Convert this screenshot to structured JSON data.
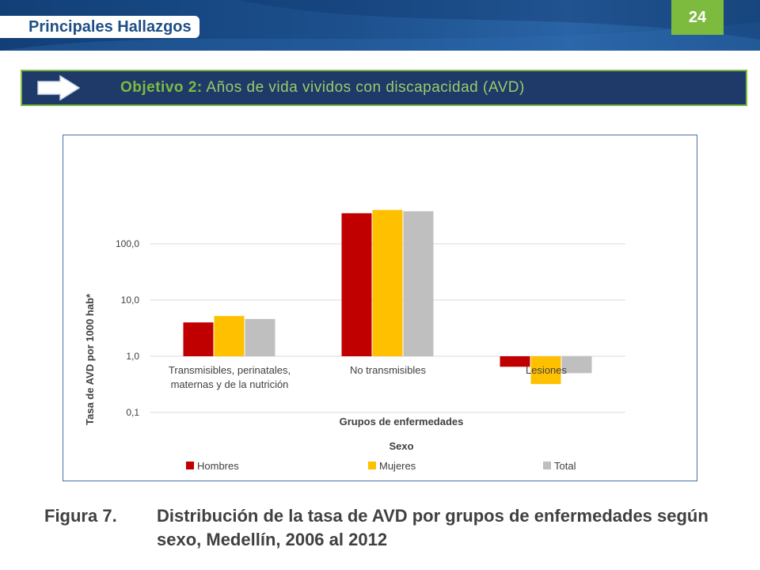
{
  "header": {
    "title": "Principales Hallazgos",
    "slide_number": "24"
  },
  "objective": {
    "label": "Objetivo 2:",
    "text": "Años de vida vividos con discapacidad (AVD)",
    "icon": "arrow-right-icon"
  },
  "chart_data": {
    "type": "bar",
    "y_scale": "log",
    "ylim": [
      0.1,
      500
    ],
    "yticks": [
      {
        "value": 0.1,
        "label": "0,1"
      },
      {
        "value": 1,
        "label": "1,0"
      },
      {
        "value": 10,
        "label": "10,0"
      },
      {
        "value": 100,
        "label": "100,0"
      }
    ],
    "bar_base": 1,
    "categories": [
      "Transmisibles, perinatales, maternas y de la nutrición",
      "No transmisibles",
      "Lesiones"
    ],
    "category_lines": [
      [
        "Transmisibles, perinatales,",
        "maternas y de la nutrición"
      ],
      [
        "No transmisibles"
      ],
      [
        "Lesiones"
      ]
    ],
    "series": [
      {
        "name": "Hombres",
        "color": "#c00000",
        "values": [
          4.0,
          350,
          0.65
        ]
      },
      {
        "name": "Mujeres",
        "color": "#ffc000",
        "values": [
          5.2,
          400,
          0.32
        ]
      },
      {
        "name": "Total",
        "color": "#bfbfbf",
        "values": [
          4.6,
          380,
          0.5
        ]
      }
    ],
    "xlabel": "Grupos de enfermedades",
    "ylabel": "Tasa de AVD por 1000 hab*",
    "legend_title": "Sexo",
    "legend_position": "bottom",
    "grid": true
  },
  "caption": {
    "label": "Figura 7.",
    "text": "Distribución de la tasa de AVD por grupos de enfermedades según sexo, Medellín, 2006 al 2012"
  }
}
